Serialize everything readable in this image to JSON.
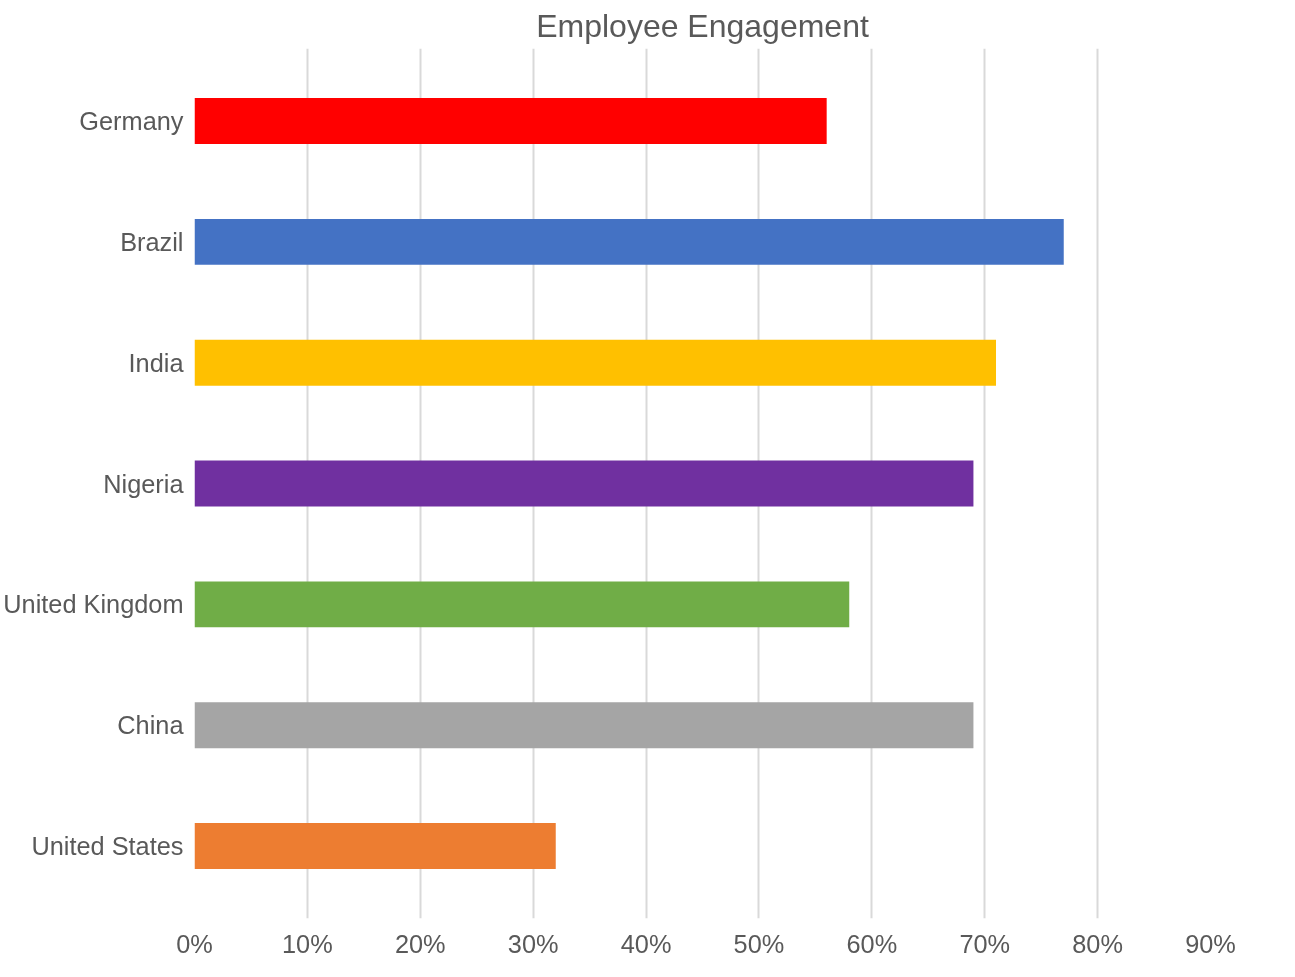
{
  "chart_data": {
    "type": "bar",
    "orientation": "horizontal",
    "title": "Employee Engagement",
    "categories": [
      "Germany",
      "Brazil",
      "India",
      "Nigeria",
      "United Kingdom",
      "China",
      "United States"
    ],
    "values": [
      56,
      77,
      71,
      69,
      58,
      69,
      32
    ],
    "colors": [
      "#ff0000",
      "#4472c4",
      "#ffc000",
      "#7030a0",
      "#70ad47",
      "#a5a5a5",
      "#ed7d31"
    ],
    "xlim": [
      0,
      90
    ],
    "xticks": [
      {
        "value": 0,
        "label": "0%"
      },
      {
        "value": 10,
        "label": "10%"
      },
      {
        "value": 20,
        "label": "20%"
      },
      {
        "value": 30,
        "label": "30%"
      },
      {
        "value": 40,
        "label": "40%"
      },
      {
        "value": 50,
        "label": "50%"
      },
      {
        "value": 60,
        "label": "60%"
      },
      {
        "value": 70,
        "label": "70%"
      },
      {
        "value": 80,
        "label": "80%"
      },
      {
        "value": 90,
        "label": "90%"
      }
    ],
    "grid": "x"
  }
}
